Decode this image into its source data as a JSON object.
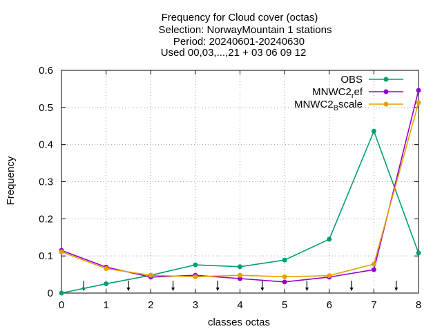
{
  "chart_data": {
    "type": "line",
    "title_lines": [
      "Frequency  for Cloud cover (octas)",
      "Selection: NorwayMountain      1 stations",
      "Period: 20240601-20240630",
      "Used 00,03,...,21 + 03 06 09 12"
    ],
    "xlabel": "classes octas",
    "ylabel": "Frequency",
    "x": [
      0,
      1,
      2,
      3,
      4,
      5,
      6,
      7,
      8
    ],
    "xlim": [
      0,
      8
    ],
    "ylim": [
      0,
      0.6
    ],
    "x_ticks": [
      "0",
      "1",
      "2",
      "3",
      "4",
      "5",
      "6",
      "7",
      "8"
    ],
    "y_ticks": [
      "0",
      "0.1",
      "0.2",
      "0.3",
      "0.4",
      "0.5",
      "0.6"
    ],
    "grid": true,
    "legend_position": "top-right",
    "series": [
      {
        "name": "OBS",
        "legend_main": "OBS",
        "legend_sub": "",
        "legend_after": "",
        "color": "#009e73",
        "values": [
          0.0,
          0.025,
          0.048,
          0.076,
          0.071,
          0.089,
          0.145,
          0.436,
          0.108
        ]
      },
      {
        "name": "MNWC2_ref",
        "legend_main": "MNWC2",
        "legend_sub": "r",
        "legend_after": "ef",
        "color": "#9400d3",
        "values": [
          0.115,
          0.07,
          0.043,
          0.048,
          0.039,
          0.03,
          0.043,
          0.063,
          0.546
        ]
      },
      {
        "name": "MNWC2_Bscale",
        "legend_main": "MNWC2",
        "legend_sub": "B",
        "legend_after": "scale",
        "color": "#e69f00",
        "values": [
          0.111,
          0.066,
          0.048,
          0.044,
          0.048,
          0.044,
          0.047,
          0.078,
          0.513
        ]
      }
    ],
    "class_boundary_arrows": [
      0.5,
      1.5,
      2.5,
      3.5,
      4.5,
      5.5,
      6.5,
      7.5
    ]
  }
}
